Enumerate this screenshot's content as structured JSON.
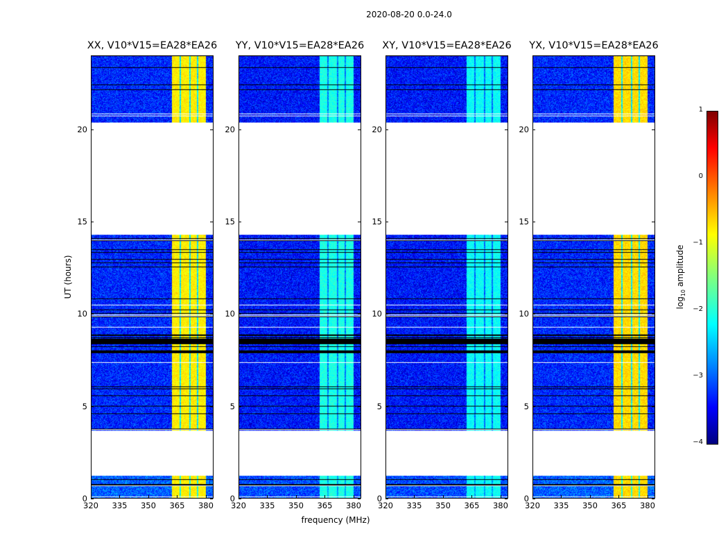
{
  "chart_data": {
    "type": "heatmap",
    "title": "2020-08-20 0.0-24.0",
    "xlabel": "frequency (MHz)",
    "ylabel": "UT (hours)",
    "xlim": [
      320,
      384
    ],
    "ylim": [
      0,
      24
    ],
    "xticks": [
      "320",
      "335",
      "350",
      "365",
      "380"
    ],
    "yticks": [
      "0",
      "5",
      "10",
      "15",
      "20"
    ],
    "colorbar": {
      "label_prefix": "log",
      "label_sub": "10",
      "label_suffix": " amplitude",
      "range": [
        -4,
        1
      ],
      "ticks": [
        "1",
        "0",
        "−1",
        "−2",
        "−3",
        "−4"
      ],
      "colormap": "jet"
    },
    "data_segments_ut": [
      [
        0.0,
        1.25
      ],
      [
        3.7,
        14.3
      ],
      [
        20.4,
        24.0
      ]
    ],
    "bright_band_mhz": [
      362,
      380
    ],
    "panels": [
      {
        "title": "XX, V10*V15=EA28*EA26",
        "background_log_amp": -3.2,
        "band_log_amp": -0.8
      },
      {
        "title": "YY, V10*V15=EA28*EA26",
        "background_log_amp": -3.3,
        "band_log_amp": -2.0
      },
      {
        "title": "XY, V10*V15=EA28*EA26",
        "background_log_amp": -3.3,
        "band_log_amp": -2.1
      },
      {
        "title": "YX, V10*V15=EA28*EA26",
        "background_log_amp": -3.2,
        "band_log_amp": -0.7
      }
    ]
  }
}
